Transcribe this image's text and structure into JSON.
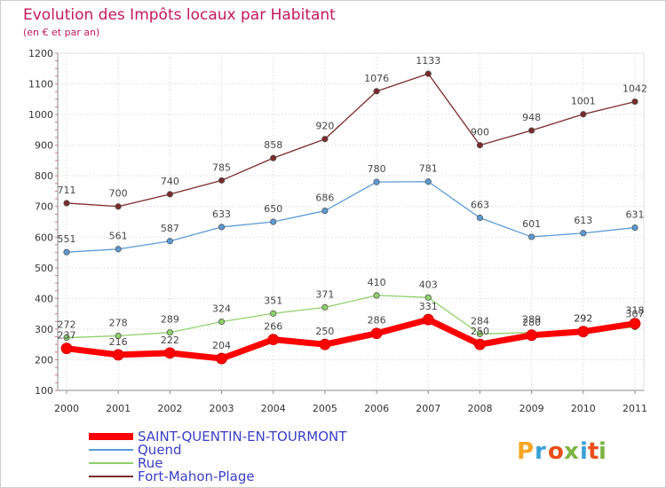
{
  "chart_data": {
    "type": "line",
    "title": "Evolution des Impôts locaux par Habitant",
    "subtitle": "(en € et par an)",
    "x": [
      "2000",
      "2001",
      "2002",
      "2003",
      "2004",
      "2005",
      "2006",
      "2007",
      "2008",
      "2009",
      "2010",
      "2011"
    ],
    "ylim": [
      100,
      1200
    ],
    "yticks": [
      100,
      200,
      300,
      400,
      500,
      600,
      700,
      800,
      900,
      1000,
      1100,
      1200
    ],
    "grid": true,
    "legend_position": "bottom-left",
    "series": [
      {
        "name": "Fort-Mahon-Plage",
        "color": "#7b2a2a",
        "values": [
          711,
          700,
          740,
          785,
          858,
          920,
          1076,
          1133,
          900,
          948,
          1001,
          1042
        ]
      },
      {
        "name": "Quend",
        "color": "#5b9bd5",
        "values": [
          551,
          561,
          587,
          633,
          650,
          686,
          780,
          781,
          663,
          601,
          613,
          631
        ]
      },
      {
        "name": "Rue",
        "color": "#8fd16a",
        "values": [
          272,
          278,
          289,
          324,
          351,
          371,
          410,
          403,
          284,
          289,
          292,
          307
        ]
      },
      {
        "name": "SAINT-QUENTIN-EN-TOURMONT",
        "color": "#ff0000",
        "values": [
          237,
          216,
          222,
          204,
          266,
          250,
          286,
          331,
          250,
          280,
          292,
          318
        ]
      }
    ],
    "legend_order": [
      "SAINT-QUENTIN-EN-TOURMONT",
      "Quend",
      "Rue",
      "Fort-Mahon-Plage"
    ]
  },
  "logo": {
    "text": "Proxiti",
    "letters": [
      "P",
      "r",
      "o",
      "x",
      "i",
      "t",
      "i"
    ],
    "colors": [
      "#f6a623",
      "#3aa0d8",
      "#e94e1b",
      "#7cb342",
      "#3aa0d8",
      "#e94e1b",
      "#7cb342"
    ]
  }
}
